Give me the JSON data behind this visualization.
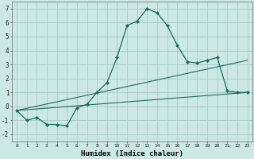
{
  "xlabel": "Humidex (Indice chaleur)",
  "background_color": "#cce8e4",
  "grid_color": "#aacfcb",
  "line_color": "#1a6b62",
  "xlim": [
    -0.5,
    23.5
  ],
  "ylim": [
    -2.5,
    7.5
  ],
  "xticks": [
    0,
    1,
    2,
    3,
    4,
    5,
    6,
    7,
    8,
    9,
    10,
    11,
    12,
    13,
    14,
    15,
    16,
    17,
    18,
    19,
    20,
    21,
    22,
    23
  ],
  "yticks": [
    -2,
    -1,
    0,
    1,
    2,
    3,
    4,
    5,
    6,
    7
  ],
  "main_x": [
    0,
    1,
    2,
    3,
    4,
    5,
    6,
    7,
    8,
    9,
    10,
    11,
    12,
    13,
    14,
    15,
    16,
    17,
    18,
    19,
    20,
    21,
    22,
    23
  ],
  "main_y": [
    -0.3,
    -1.0,
    -0.8,
    -1.3,
    -1.3,
    -1.4,
    -0.1,
    0.15,
    1.0,
    1.7,
    3.5,
    5.8,
    6.1,
    7.0,
    6.7,
    5.8,
    4.4,
    3.2,
    3.1,
    3.3,
    3.5,
    1.1,
    1.0,
    1.0
  ],
  "line2_x": [
    0,
    23
  ],
  "line2_y": [
    -0.3,
    1.0
  ],
  "line3_x": [
    0,
    23
  ],
  "line3_y": [
    -0.3,
    3.3
  ]
}
